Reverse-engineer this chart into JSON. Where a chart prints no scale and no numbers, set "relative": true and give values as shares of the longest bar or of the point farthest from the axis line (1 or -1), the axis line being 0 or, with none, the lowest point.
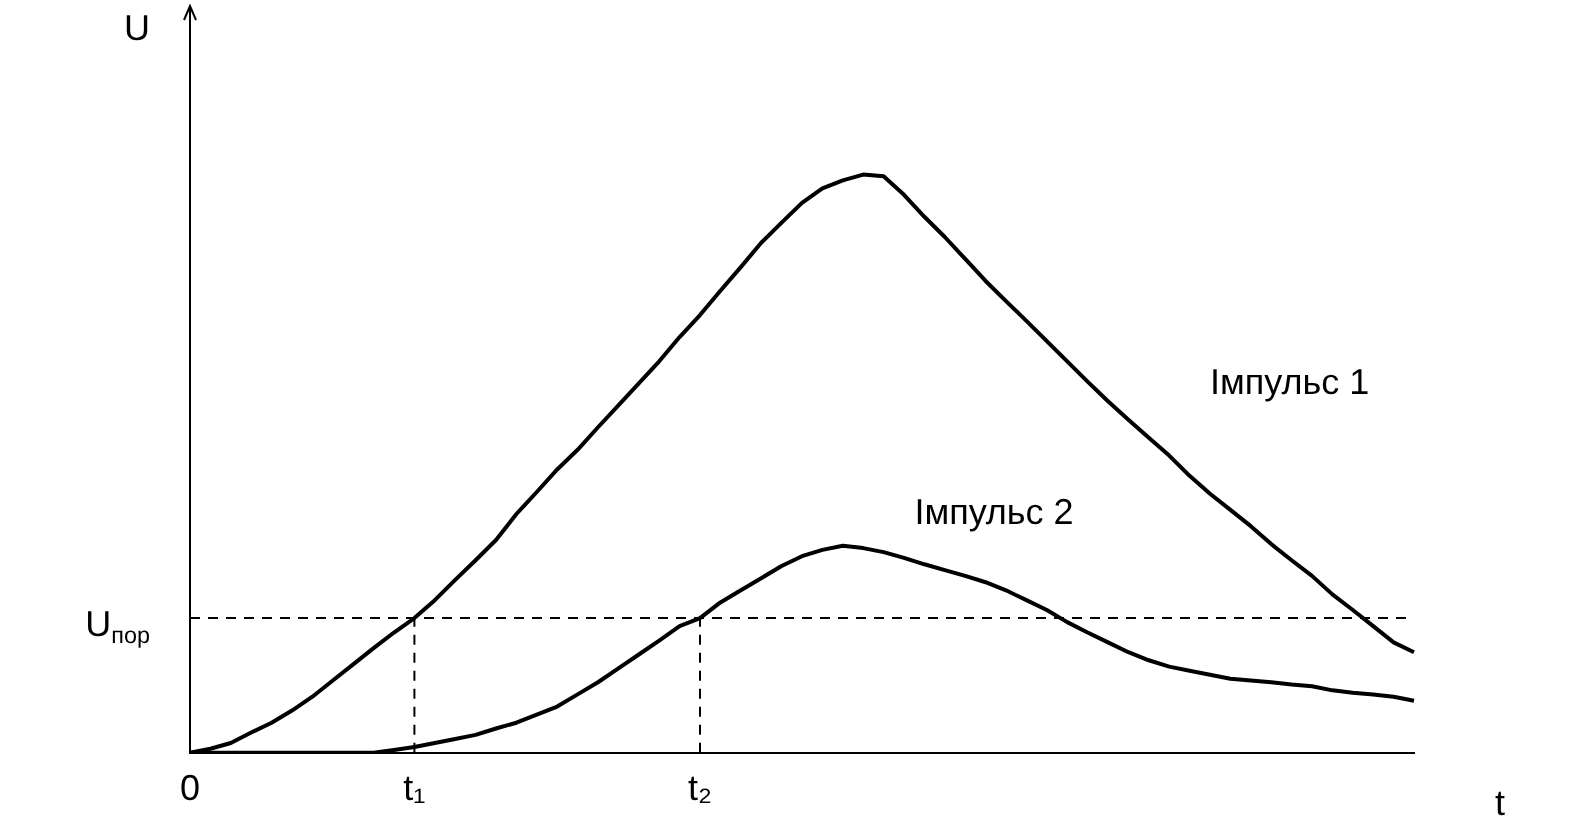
{
  "chart_data": {
    "type": "line",
    "relative": true,
    "xlabel": "t",
    "ylabel": "U",
    "legend": false,
    "grid": false,
    "categories": [
      "0",
      null,
      null,
      null,
      null,
      null,
      null,
      null,
      null,
      null,
      null,
      "t₁",
      null,
      null,
      null,
      null,
      null,
      null,
      null,
      null,
      null,
      null,
      null,
      null,
      null,
      "t₂",
      null,
      null,
      null,
      null,
      null,
      null,
      null,
      null,
      null,
      null,
      null,
      null,
      null,
      null,
      null,
      null,
      null,
      null,
      null,
      null,
      null,
      null,
      null,
      null,
      null,
      null,
      null,
      null,
      null,
      null,
      null,
      null,
      null,
      null,
      null
    ],
    "series": [
      {
        "name": "Імпульс 1",
        "color": "#000000",
        "values": [
          0,
          0.007,
          0.017,
          0.035,
          0.052,
          0.073,
          0.097,
          0.125,
          0.153,
          0.181,
          0.208,
          0.233,
          0.264,
          0.299,
          0.333,
          0.368,
          0.413,
          0.451,
          0.49,
          0.524,
          0.563,
          0.601,
          0.639,
          0.677,
          0.719,
          0.757,
          0.799,
          0.84,
          0.882,
          0.917,
          0.951,
          0.976,
          0.99,
          1,
          0.997,
          0.965,
          0.927,
          0.892,
          0.854,
          0.816,
          0.781,
          0.747,
          0.712,
          0.677,
          0.642,
          0.608,
          0.576,
          0.545,
          0.514,
          0.479,
          0.448,
          0.42,
          0.392,
          0.361,
          0.333,
          0.306,
          0.274,
          0.247,
          0.219,
          0.191,
          0.174
        ]
      },
      {
        "name": "Імпульс 2",
        "color": "#000000",
        "values": [
          0,
          0,
          0,
          0,
          0,
          0,
          0,
          0,
          0,
          0,
          0.005,
          0.01,
          0.017,
          0.024,
          0.031,
          0.042,
          0.052,
          0.066,
          0.08,
          0.101,
          0.122,
          0.146,
          0.17,
          0.194,
          0.219,
          0.233,
          0.26,
          0.281,
          0.302,
          0.323,
          0.34,
          0.351,
          0.358,
          0.354,
          0.347,
          0.337,
          0.326,
          0.316,
          0.306,
          0.295,
          0.281,
          0.264,
          0.247,
          0.226,
          0.208,
          0.191,
          0.174,
          0.16,
          0.149,
          0.142,
          0.135,
          0.128,
          0.125,
          0.122,
          0.118,
          0.115,
          0.108,
          0.104,
          0.101,
          0.097,
          0.09
        ]
      }
    ],
    "ref_lines": [
      {
        "axis": "y",
        "value": 0.233,
        "label": "U$_{пор}$",
        "color": "#000000",
        "line_style": "dashed"
      },
      {
        "axis": "x",
        "value": "t₁",
        "label": null,
        "color": "#000000",
        "line_style": "dashed"
      },
      {
        "axis": "x",
        "value": "t₂",
        "label": null,
        "color": "#000000",
        "line_style": "dashed"
      }
    ]
  }
}
